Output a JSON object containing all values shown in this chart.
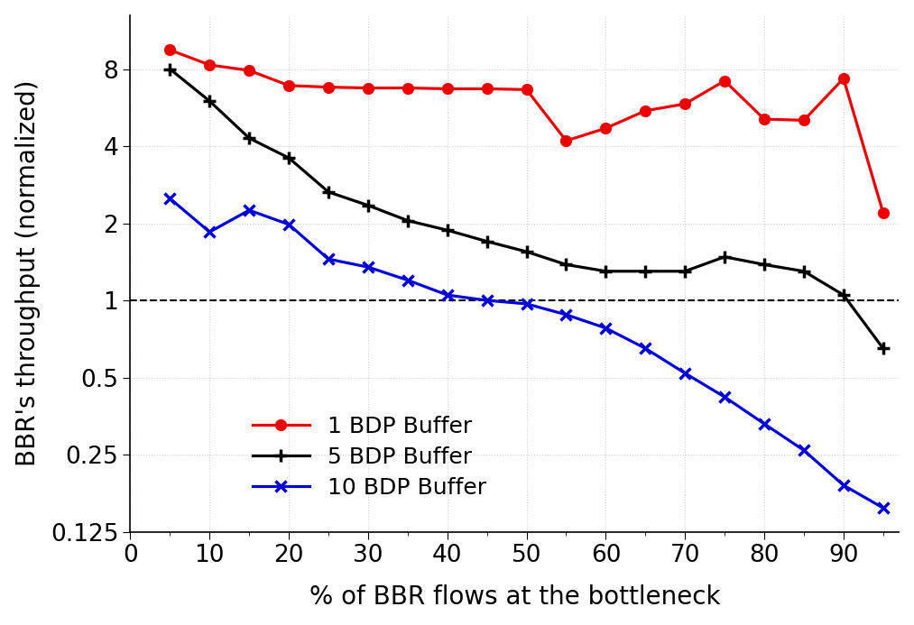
{
  "title": "",
  "xlabel": "% of BBR flows at the bottleneck",
  "ylabel": "BBR's throughput (normalized)",
  "x_ticks": [
    0,
    10,
    20,
    30,
    40,
    50,
    60,
    70,
    80,
    90
  ],
  "ylim_log": [
    0.125,
    13
  ],
  "yticks": [
    0.125,
    0.25,
    0.5,
    1,
    2,
    4,
    8
  ],
  "ytick_labels": [
    "0.125",
    "0.25",
    "0.5",
    "1",
    "2",
    "4",
    "8"
  ],
  "hline_y": 1.0,
  "series": {
    "1 BDP Buffer": {
      "color": "#ee0000",
      "marker": "o",
      "markersize": 8,
      "linewidth": 2.3,
      "x": [
        5,
        10,
        15,
        20,
        25,
        30,
        35,
        40,
        45,
        50,
        55,
        60,
        65,
        70,
        75,
        80,
        85,
        90,
        95
      ],
      "y": [
        9.5,
        8.3,
        7.9,
        6.9,
        6.8,
        6.75,
        6.75,
        6.7,
        6.7,
        6.65,
        4.2,
        4.7,
        5.5,
        5.85,
        7.2,
        5.1,
        5.05,
        7.35,
        2.2
      ]
    },
    "5 BDP Buffer": {
      "color": "#000000",
      "marker": "+",
      "markersize": 10,
      "linewidth": 2.3,
      "x": [
        5,
        10,
        15,
        20,
        25,
        30,
        35,
        40,
        45,
        50,
        55,
        60,
        65,
        70,
        75,
        80,
        85,
        90,
        95
      ],
      "y": [
        8.0,
        6.0,
        4.3,
        3.6,
        2.65,
        2.35,
        2.05,
        1.88,
        1.7,
        1.55,
        1.38,
        1.3,
        1.3,
        1.3,
        1.48,
        1.38,
        1.3,
        1.05,
        0.65
      ]
    },
    "10 BDP Buffer": {
      "color": "#0000dd",
      "marker": "x",
      "markersize": 9,
      "linewidth": 2.3,
      "x": [
        5,
        10,
        15,
        20,
        25,
        30,
        35,
        40,
        45,
        50,
        55,
        60,
        65,
        70,
        75,
        80,
        85,
        90,
        95
      ],
      "y": [
        2.5,
        1.85,
        2.25,
        1.98,
        1.45,
        1.35,
        1.2,
        1.05,
        1.0,
        0.97,
        0.88,
        0.78,
        0.65,
        0.52,
        0.42,
        0.33,
        0.26,
        0.19,
        0.155
      ]
    }
  },
  "grid_color": "#d0d0d0",
  "background_color": "#ffffff",
  "font_size": 20,
  "legend_font_size": 18,
  "tick_font_size": 19
}
